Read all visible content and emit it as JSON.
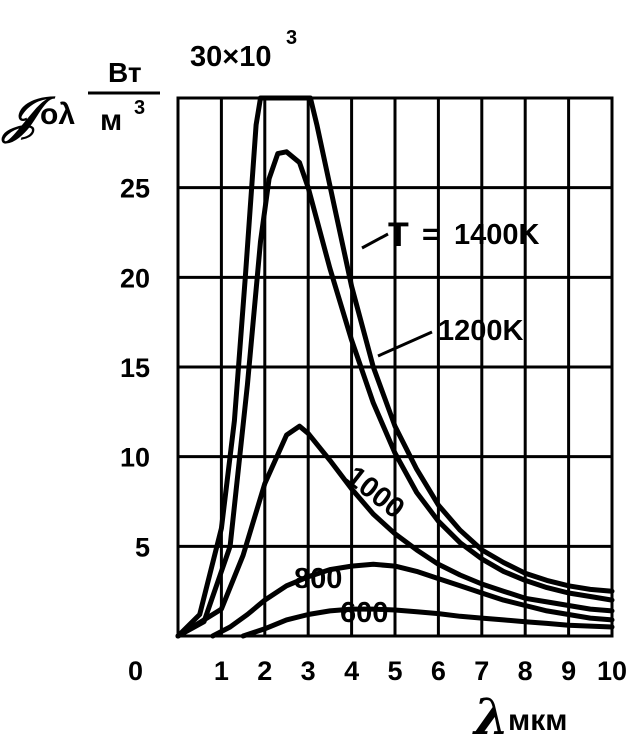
{
  "chart_data": {
    "type": "line",
    "ylabel": {
      "symbol": "𝒥",
      "subscript": "oλ",
      "unit_numerator": "Вт",
      "unit_denominator": "м",
      "unit_exponent": "3"
    },
    "multiplier": {
      "text": "30×10",
      "exponent": "3"
    },
    "xlabel": {
      "symbol": "λ",
      "unit": "мкм"
    },
    "xlim": [
      0,
      10
    ],
    "ylim": [
      0,
      30
    ],
    "x_ticks": [
      "1",
      "2",
      "3",
      "4",
      "5",
      "6",
      "7",
      "8",
      "9",
      "10"
    ],
    "y_ticks": [
      "5",
      "10",
      "15",
      "20",
      "25"
    ],
    "origin_label": "0",
    "grid": true,
    "series": [
      {
        "name": "1400K",
        "label_prefix": "T",
        "label_eq": "=",
        "points": [
          [
            0,
            0
          ],
          [
            0.5,
            1.2
          ],
          [
            1.0,
            6
          ],
          [
            1.3,
            12
          ],
          [
            1.55,
            20
          ],
          [
            1.8,
            28.5
          ],
          [
            1.9,
            30
          ],
          [
            3.05,
            30
          ],
          [
            3.2,
            28.5
          ],
          [
            3.6,
            24
          ],
          [
            4,
            19.5
          ],
          [
            4.5,
            15
          ],
          [
            5,
            11.7
          ],
          [
            5.5,
            9.3
          ],
          [
            6,
            7.3
          ],
          [
            6.5,
            5.9
          ],
          [
            7,
            4.8
          ],
          [
            7.5,
            4.1
          ],
          [
            8,
            3.5
          ],
          [
            8.5,
            3.1
          ],
          [
            9,
            2.8
          ],
          [
            9.5,
            2.6
          ],
          [
            10,
            2.5
          ]
        ]
      },
      {
        "name": "1200K",
        "points": [
          [
            0,
            0
          ],
          [
            0.6,
            0.8
          ],
          [
            1.2,
            5
          ],
          [
            1.6,
            14
          ],
          [
            1.9,
            22
          ],
          [
            2.1,
            25.5
          ],
          [
            2.3,
            26.9
          ],
          [
            2.5,
            27
          ],
          [
            2.8,
            26.4
          ],
          [
            3,
            25
          ],
          [
            3.5,
            20.5
          ],
          [
            4,
            16.5
          ],
          [
            4.5,
            13
          ],
          [
            5,
            10.2
          ],
          [
            5.5,
            8
          ],
          [
            6,
            6.4
          ],
          [
            6.5,
            5.2
          ],
          [
            7,
            4.3
          ],
          [
            7.5,
            3.6
          ],
          [
            8,
            3.1
          ],
          [
            8.5,
            2.7
          ],
          [
            9,
            2.4
          ],
          [
            9.5,
            2.2
          ],
          [
            10,
            2.0
          ]
        ]
      },
      {
        "name": "1000",
        "points": [
          [
            0,
            0
          ],
          [
            1,
            1.5
          ],
          [
            1.5,
            4.5
          ],
          [
            2,
            8.5
          ],
          [
            2.5,
            11.2
          ],
          [
            2.8,
            11.7
          ],
          [
            3,
            11.3
          ],
          [
            3.5,
            9.8
          ],
          [
            4,
            8.2
          ],
          [
            4.5,
            6.8
          ],
          [
            5,
            5.7
          ],
          [
            5.5,
            4.8
          ],
          [
            6,
            4.0
          ],
          [
            6.5,
            3.4
          ],
          [
            7,
            2.9
          ],
          [
            7.5,
            2.5
          ],
          [
            8,
            2.1
          ],
          [
            8.5,
            1.9
          ],
          [
            9,
            1.7
          ],
          [
            9.5,
            1.5
          ],
          [
            10,
            1.4
          ]
        ]
      },
      {
        "name": "800",
        "points": [
          [
            0.8,
            0
          ],
          [
            1.2,
            0.5
          ],
          [
            1.6,
            1.2
          ],
          [
            2,
            2.0
          ],
          [
            2.5,
            2.8
          ],
          [
            3,
            3.3
          ],
          [
            3.5,
            3.7
          ],
          [
            4,
            3.9
          ],
          [
            4.5,
            4.0
          ],
          [
            5,
            3.9
          ],
          [
            5.5,
            3.6
          ],
          [
            6,
            3.2
          ],
          [
            6.5,
            2.8
          ],
          [
            7,
            2.4
          ],
          [
            7.5,
            2.0
          ],
          [
            8,
            1.7
          ],
          [
            8.5,
            1.4
          ],
          [
            9,
            1.2
          ],
          [
            9.5,
            1.0
          ],
          [
            10,
            0.9
          ]
        ]
      },
      {
        "name": "600",
        "points": [
          [
            1.5,
            0
          ],
          [
            2,
            0.4
          ],
          [
            2.5,
            0.9
          ],
          [
            3,
            1.2
          ],
          [
            3.5,
            1.4
          ],
          [
            4,
            1.5
          ],
          [
            4.5,
            1.5
          ],
          [
            5,
            1.45
          ],
          [
            5.5,
            1.35
          ],
          [
            6,
            1.25
          ],
          [
            6.5,
            1.1
          ],
          [
            7,
            1.0
          ],
          [
            7.5,
            0.9
          ],
          [
            8,
            0.8
          ],
          [
            8.5,
            0.7
          ],
          [
            9,
            0.6
          ],
          [
            9.5,
            0.55
          ],
          [
            10,
            0.5
          ]
        ]
      }
    ]
  }
}
